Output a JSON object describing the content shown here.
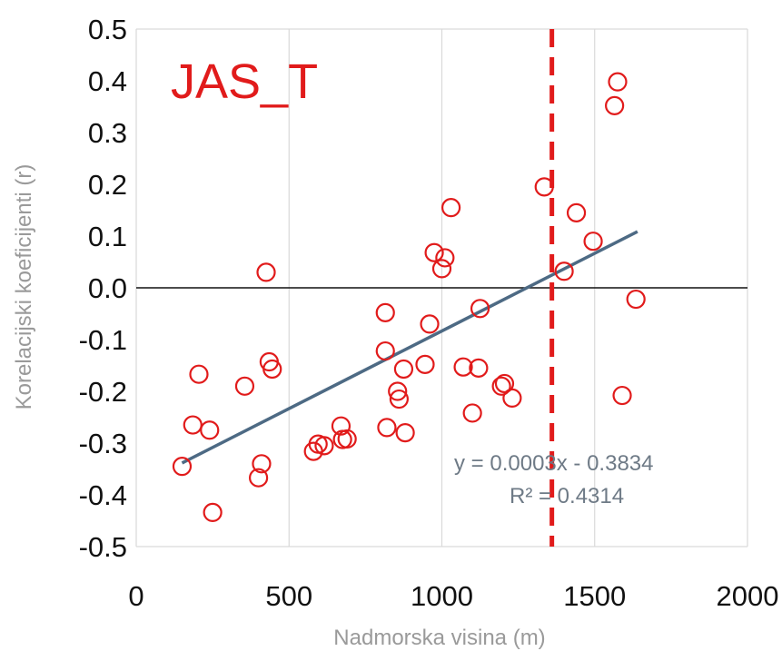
{
  "chart_data": {
    "type": "scatter",
    "title": "JAS_T",
    "xlabel": "Nadmorska visina (m)",
    "ylabel": "Korelacijski koeficijenti (r)",
    "xlim": [
      0,
      2000
    ],
    "ylim": [
      -0.5,
      0.5
    ],
    "x_ticks": [
      "0",
      "500",
      "1000",
      "1500",
      "2000"
    ],
    "y_ticks": [
      "0.5",
      "0.4",
      "0.3",
      "0.2",
      "0.1",
      "0.0",
      "-0.1",
      "-0.2",
      "-0.3",
      "-0.4",
      "-0.5"
    ],
    "grid": "vertical",
    "points": [
      {
        "x": 150,
        "y": -0.345
      },
      {
        "x": 185,
        "y": -0.265
      },
      {
        "x": 205,
        "y": -0.167
      },
      {
        "x": 240,
        "y": -0.275
      },
      {
        "x": 250,
        "y": -0.434
      },
      {
        "x": 355,
        "y": -0.19
      },
      {
        "x": 400,
        "y": -0.367
      },
      {
        "x": 410,
        "y": -0.34
      },
      {
        "x": 425,
        "y": 0.03
      },
      {
        "x": 435,
        "y": -0.143
      },
      {
        "x": 445,
        "y": -0.157
      },
      {
        "x": 580,
        "y": -0.316
      },
      {
        "x": 595,
        "y": -0.302
      },
      {
        "x": 615,
        "y": -0.305
      },
      {
        "x": 670,
        "y": -0.267
      },
      {
        "x": 675,
        "y": -0.293
      },
      {
        "x": 690,
        "y": -0.292
      },
      {
        "x": 815,
        "y": -0.048
      },
      {
        "x": 815,
        "y": -0.122
      },
      {
        "x": 820,
        "y": -0.27
      },
      {
        "x": 855,
        "y": -0.2
      },
      {
        "x": 860,
        "y": -0.215
      },
      {
        "x": 875,
        "y": -0.157
      },
      {
        "x": 880,
        "y": -0.28
      },
      {
        "x": 945,
        "y": -0.148
      },
      {
        "x": 960,
        "y": -0.07
      },
      {
        "x": 975,
        "y": 0.068
      },
      {
        "x": 1000,
        "y": 0.037
      },
      {
        "x": 1010,
        "y": 0.058
      },
      {
        "x": 1030,
        "y": 0.155
      },
      {
        "x": 1070,
        "y": -0.153
      },
      {
        "x": 1100,
        "y": -0.242
      },
      {
        "x": 1120,
        "y": -0.155
      },
      {
        "x": 1125,
        "y": -0.04
      },
      {
        "x": 1195,
        "y": -0.19
      },
      {
        "x": 1205,
        "y": -0.185
      },
      {
        "x": 1230,
        "y": -0.213
      },
      {
        "x": 1335,
        "y": 0.195
      },
      {
        "x": 1400,
        "y": 0.032
      },
      {
        "x": 1440,
        "y": 0.145
      },
      {
        "x": 1495,
        "y": 0.09
      },
      {
        "x": 1565,
        "y": 0.352
      },
      {
        "x": 1575,
        "y": 0.398
      },
      {
        "x": 1590,
        "y": -0.208
      },
      {
        "x": 1635,
        "y": -0.022
      }
    ],
    "trendline": {
      "slope": 0.0003,
      "intercept": -0.3834,
      "x_range": [
        150,
        1640
      ]
    },
    "vertical_line_x": 1360,
    "equation": "y = 0.0003x - 0.3834",
    "r2": "R² = 0.4314",
    "colors": {
      "points": "#e11b1b",
      "trendline": "#4d6a84",
      "vline": "#e11b1b",
      "title": "#e11b1b",
      "grid": "#d9d9d9"
    }
  }
}
